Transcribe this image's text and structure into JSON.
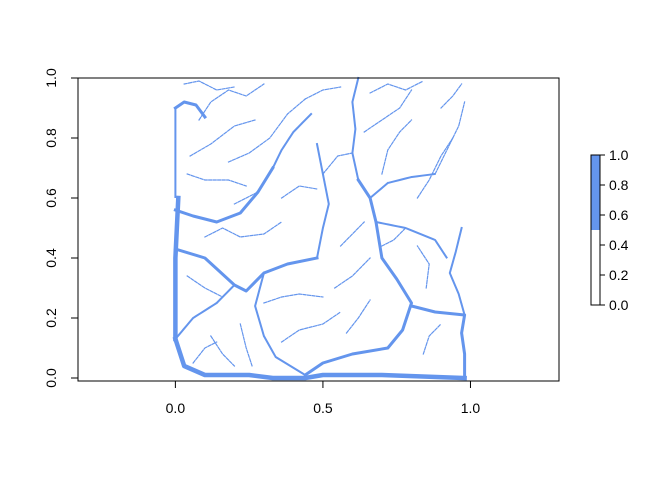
{
  "chart_data": {
    "type": "heatmap",
    "title": "",
    "xlabel": "",
    "ylabel": "",
    "xlim": [
      -0.33,
      1.3
    ],
    "ylim": [
      -0.01,
      1.0
    ],
    "grid": false,
    "x_ticks": [
      "0.0",
      "0.5",
      "1.0"
    ],
    "y_ticks": [
      "0.0",
      "0.2",
      "0.4",
      "0.6",
      "0.8",
      "1.0"
    ],
    "raster_color": "#6495ED",
    "legend": {
      "placement": "right",
      "range": [
        0,
        1
      ],
      "ticks": [
        "0.0",
        "0.2",
        "0.4",
        "0.6",
        "0.8",
        "1.0"
      ],
      "bins": [
        {
          "from": 0.0,
          "to": 0.5,
          "color": "#FFFFFF"
        },
        {
          "from": 0.5,
          "to": 1.0,
          "color": "#6495ED"
        }
      ]
    },
    "streams": [
      {
        "order": 5,
        "points": [
          [
            0.0,
            0.13
          ],
          [
            0.0,
            0.4
          ],
          [
            0.01,
            0.6
          ]
        ]
      },
      {
        "order": 5,
        "points": [
          [
            0.0,
            0.13
          ],
          [
            0.03,
            0.04
          ],
          [
            0.1,
            0.01
          ],
          [
            0.25,
            0.01
          ],
          [
            0.33,
            0.0
          ],
          [
            0.44,
            0.0
          ],
          [
            0.5,
            0.01
          ],
          [
            0.7,
            0.01
          ],
          [
            0.98,
            0.0
          ]
        ]
      },
      {
        "order": 4,
        "points": [
          [
            0.0,
            0.43
          ],
          [
            0.1,
            0.4
          ],
          [
            0.2,
            0.31
          ],
          [
            0.24,
            0.29
          ],
          [
            0.3,
            0.35
          ],
          [
            0.38,
            0.38
          ],
          [
            0.48,
            0.4
          ]
        ]
      },
      {
        "order": 4,
        "points": [
          [
            0.0,
            0.56
          ],
          [
            0.06,
            0.54
          ],
          [
            0.14,
            0.52
          ],
          [
            0.22,
            0.55
          ],
          [
            0.28,
            0.62
          ],
          [
            0.33,
            0.7
          ]
        ]
      },
      {
        "order": 4,
        "points": [
          [
            0.44,
            0.01
          ],
          [
            0.5,
            0.05
          ],
          [
            0.6,
            0.08
          ],
          [
            0.72,
            0.1
          ],
          [
            0.77,
            0.16
          ],
          [
            0.8,
            0.25
          ],
          [
            0.75,
            0.33
          ],
          [
            0.7,
            0.4
          ],
          [
            0.68,
            0.52
          ],
          [
            0.66,
            0.6
          ],
          [
            0.62,
            0.66
          ]
        ]
      },
      {
        "order": 4,
        "points": [
          [
            0.98,
            0.0
          ],
          [
            0.98,
            0.08
          ],
          [
            0.97,
            0.15
          ],
          [
            0.98,
            0.21
          ],
          [
            0.88,
            0.22
          ],
          [
            0.8,
            0.24
          ]
        ]
      },
      {
        "order": 4,
        "points": [
          [
            0.0,
            0.9
          ],
          [
            0.03,
            0.92
          ],
          [
            0.07,
            0.91
          ],
          [
            0.1,
            0.87
          ]
        ]
      },
      {
        "order": 3,
        "points": [
          [
            0.66,
            0.6
          ],
          [
            0.72,
            0.65
          ],
          [
            0.8,
            0.67
          ],
          [
            0.88,
            0.68
          ]
        ]
      },
      {
        "order": 3,
        "points": [
          [
            0.62,
            0.66
          ],
          [
            0.6,
            0.75
          ],
          [
            0.61,
            0.83
          ],
          [
            0.6,
            0.92
          ],
          [
            0.62,
            1.0
          ]
        ]
      },
      {
        "order": 3,
        "points": [
          [
            0.98,
            0.21
          ],
          [
            0.96,
            0.28
          ],
          [
            0.93,
            0.35
          ],
          [
            0.95,
            0.42
          ],
          [
            0.97,
            0.5
          ]
        ]
      },
      {
        "order": 3,
        "points": [
          [
            0.68,
            0.52
          ],
          [
            0.78,
            0.5
          ],
          [
            0.88,
            0.46
          ],
          [
            0.92,
            0.4
          ]
        ]
      },
      {
        "order": 3,
        "points": [
          [
            0.48,
            0.4
          ],
          [
            0.5,
            0.5
          ],
          [
            0.52,
            0.58
          ],
          [
            0.5,
            0.68
          ],
          [
            0.48,
            0.78
          ]
        ]
      },
      {
        "order": 3,
        "points": [
          [
            0.33,
            0.7
          ],
          [
            0.36,
            0.76
          ],
          [
            0.4,
            0.82
          ],
          [
            0.46,
            0.88
          ]
        ]
      },
      {
        "order": 3,
        "points": [
          [
            0.3,
            0.35
          ],
          [
            0.27,
            0.24
          ],
          [
            0.3,
            0.14
          ],
          [
            0.34,
            0.07
          ],
          [
            0.44,
            0.01
          ]
        ]
      },
      {
        "order": 3,
        "points": [
          [
            0.0,
            0.13
          ],
          [
            0.06,
            0.2
          ],
          [
            0.14,
            0.25
          ],
          [
            0.2,
            0.31
          ]
        ]
      },
      {
        "order": 3,
        "points": [
          [
            0.0,
            0.9
          ],
          [
            0.0,
            0.75
          ],
          [
            0.0,
            0.6
          ]
        ]
      },
      {
        "order": 2,
        "points": [
          [
            0.08,
            0.86
          ],
          [
            0.12,
            0.92
          ],
          [
            0.18,
            0.96
          ],
          [
            0.24,
            0.94
          ],
          [
            0.3,
            0.98
          ]
        ]
      },
      {
        "order": 2,
        "points": [
          [
            0.18,
            0.72
          ],
          [
            0.25,
            0.75
          ],
          [
            0.32,
            0.8
          ],
          [
            0.38,
            0.88
          ],
          [
            0.44,
            0.93
          ]
        ]
      },
      {
        "order": 2,
        "points": [
          [
            0.05,
            0.74
          ],
          [
            0.12,
            0.78
          ],
          [
            0.2,
            0.84
          ],
          [
            0.27,
            0.86
          ]
        ]
      },
      {
        "order": 2,
        "points": [
          [
            0.04,
            0.68
          ],
          [
            0.1,
            0.66
          ],
          [
            0.18,
            0.66
          ],
          [
            0.24,
            0.64
          ]
        ]
      },
      {
        "order": 2,
        "points": [
          [
            0.1,
            0.47
          ],
          [
            0.16,
            0.5
          ],
          [
            0.22,
            0.47
          ],
          [
            0.3,
            0.48
          ],
          [
            0.36,
            0.52
          ]
        ]
      },
      {
        "order": 2,
        "points": [
          [
            0.04,
            0.34
          ],
          [
            0.1,
            0.3
          ],
          [
            0.16,
            0.27
          ]
        ]
      },
      {
        "order": 2,
        "points": [
          [
            0.3,
            0.25
          ],
          [
            0.36,
            0.27
          ],
          [
            0.42,
            0.28
          ],
          [
            0.5,
            0.27
          ]
        ]
      },
      {
        "order": 2,
        "points": [
          [
            0.36,
            0.12
          ],
          [
            0.42,
            0.16
          ],
          [
            0.5,
            0.18
          ],
          [
            0.56,
            0.22
          ]
        ]
      },
      {
        "order": 2,
        "points": [
          [
            0.54,
            0.3
          ],
          [
            0.6,
            0.34
          ],
          [
            0.66,
            0.4
          ]
        ]
      },
      {
        "order": 2,
        "points": [
          [
            0.12,
            0.14
          ],
          [
            0.16,
            0.08
          ],
          [
            0.2,
            0.04
          ]
        ]
      },
      {
        "order": 2,
        "points": [
          [
            0.22,
            0.18
          ],
          [
            0.24,
            0.1
          ],
          [
            0.26,
            0.04
          ]
        ]
      },
      {
        "order": 2,
        "points": [
          [
            0.58,
            0.15
          ],
          [
            0.62,
            0.2
          ],
          [
            0.66,
            0.26
          ]
        ]
      },
      {
        "order": 2,
        "points": [
          [
            0.85,
            0.3
          ],
          [
            0.86,
            0.38
          ],
          [
            0.82,
            0.44
          ]
        ]
      },
      {
        "order": 2,
        "points": [
          [
            0.84,
            0.08
          ],
          [
            0.86,
            0.14
          ],
          [
            0.9,
            0.18
          ]
        ]
      },
      {
        "order": 2,
        "points": [
          [
            0.7,
            0.68
          ],
          [
            0.72,
            0.76
          ],
          [
            0.76,
            0.82
          ],
          [
            0.8,
            0.86
          ]
        ]
      },
      {
        "order": 2,
        "points": [
          [
            0.82,
            0.6
          ],
          [
            0.86,
            0.66
          ],
          [
            0.9,
            0.74
          ],
          [
            0.94,
            0.8
          ]
        ]
      },
      {
        "order": 2,
        "points": [
          [
            0.64,
            0.82
          ],
          [
            0.7,
            0.86
          ],
          [
            0.76,
            0.9
          ],
          [
            0.8,
            0.96
          ]
        ]
      },
      {
        "order": 2,
        "points": [
          [
            0.88,
            0.68
          ],
          [
            0.92,
            0.76
          ],
          [
            0.96,
            0.84
          ],
          [
            0.98,
            0.92
          ]
        ]
      },
      {
        "order": 2,
        "points": [
          [
            0.5,
            0.68
          ],
          [
            0.55,
            0.74
          ],
          [
            0.6,
            0.75
          ]
        ]
      },
      {
        "order": 2,
        "points": [
          [
            0.66,
            0.95
          ],
          [
            0.72,
            0.98
          ],
          [
            0.78,
            0.96
          ],
          [
            0.84,
            0.99
          ]
        ]
      },
      {
        "order": 2,
        "points": [
          [
            0.03,
            0.98
          ],
          [
            0.08,
            0.99
          ],
          [
            0.14,
            0.96
          ],
          [
            0.2,
            0.97
          ]
        ]
      },
      {
        "order": 2,
        "points": [
          [
            0.44,
            0.93
          ],
          [
            0.5,
            0.96
          ],
          [
            0.56,
            0.97
          ]
        ]
      },
      {
        "order": 2,
        "points": [
          [
            0.36,
            0.6
          ],
          [
            0.42,
            0.64
          ],
          [
            0.48,
            0.63
          ]
        ]
      },
      {
        "order": 2,
        "points": [
          [
            0.2,
            0.58
          ],
          [
            0.24,
            0.6
          ],
          [
            0.28,
            0.62
          ]
        ]
      },
      {
        "order": 2,
        "points": [
          [
            0.7,
            0.44
          ],
          [
            0.74,
            0.46
          ],
          [
            0.78,
            0.5
          ]
        ]
      },
      {
        "order": 2,
        "points": [
          [
            0.06,
            0.05
          ],
          [
            0.1,
            0.1
          ],
          [
            0.14,
            0.12
          ]
        ]
      },
      {
        "order": 2,
        "points": [
          [
            0.56,
            0.44
          ],
          [
            0.6,
            0.48
          ],
          [
            0.64,
            0.52
          ]
        ]
      },
      {
        "order": 2,
        "points": [
          [
            0.9,
            0.9
          ],
          [
            0.94,
            0.94
          ],
          [
            0.97,
            0.98
          ]
        ]
      }
    ]
  }
}
